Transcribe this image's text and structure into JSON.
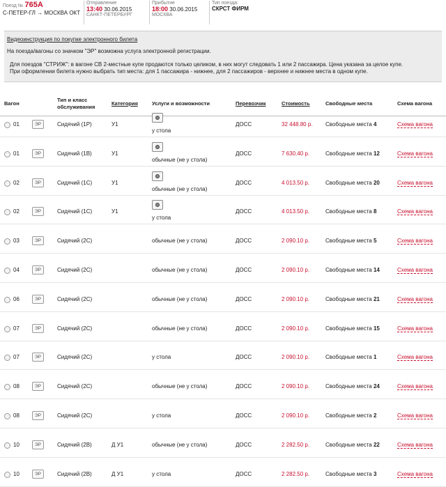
{
  "header": {
    "train_label": "Поезд №",
    "train_number": "765А",
    "route_from": "С-ПЕТЕР-ГЛ",
    "route_arrow": "→",
    "route_to": "МОСКВА ОКТ",
    "departure_label": "Отправление",
    "departure_time": "13:40",
    "departure_date": "30.06.2015",
    "departure_station": "САНКТ-ПЕТЕРБУРГ",
    "arrival_label": "Прибытие",
    "arrival_time": "18:00",
    "arrival_date": "30.06.2015",
    "arrival_station": "МОСКВА",
    "train_type_label": "Тип поезда:",
    "train_type": "СКРСТ ФИРМ"
  },
  "notice": {
    "video_link": "Видеоинструкция по покупке электронного билета",
    "line1": "На поезда/вагоны со значком \"ЭР\" возможна услуга электронной регистрации.",
    "line2": "Для поездов \"СТРИЖ\": в вагоне СВ 2-местные купе продаются только целиком, в них могут следовать 1 или 2 пассажира. Цена указана за целое купе.",
    "line3": "При оформлении билета нужно выбрать тип места: для 1 пассажира - нижнее, для 2 пассажиров - верхнее и нижнее места в одном купе."
  },
  "table": {
    "headers": {
      "car": "Вагон",
      "type_class_1": "Тип и класс",
      "type_class_2": "обслуживания",
      "category": "Категория",
      "services": "Услуги и возможности",
      "carrier": "Перевозчик",
      "price": "Стоимость",
      "free_seats": "Свободные места",
      "scheme": "Схема вагона"
    },
    "er_badge": "ЭР",
    "rows": [
      {
        "car": "01",
        "type": "Сидячий (1Р)",
        "category": "У1",
        "service_icon": true,
        "service": "у стола",
        "carrier": "ДОСС",
        "price": "32 448.80 р.",
        "seats_label": "Свободные места",
        "seats": "4",
        "scheme": "Схема вагона"
      },
      {
        "car": "01",
        "type": "Сидячий (1В)",
        "category": "У1",
        "service_icon": true,
        "service": "обычные (не у стола)",
        "carrier": "ДОСС",
        "price": "7 630.40 р.",
        "seats_label": "Свободные места",
        "seats": "12",
        "scheme": "Схема вагона"
      },
      {
        "car": "02",
        "type": "Сидячий (1С)",
        "category": "У1",
        "service_icon": true,
        "service": "обычные (не у стола)",
        "carrier": "ДОСС",
        "price": "4 013.50 р.",
        "seats_label": "Свободные места",
        "seats": "20",
        "scheme": "Схема вагона"
      },
      {
        "car": "02",
        "type": "Сидячий (1С)",
        "category": "У1",
        "service_icon": true,
        "service": "у стола",
        "carrier": "ДОСС",
        "price": "4 013.50 р.",
        "seats_label": "Свободные места",
        "seats": "8",
        "scheme": "Схема вагона"
      },
      {
        "car": "03",
        "type": "Сидячий (2С)",
        "category": "",
        "service_icon": false,
        "service": "обычные (не у стола)",
        "carrier": "ДОСС",
        "price": "2 090.10 р.",
        "seats_label": "Свободные места",
        "seats": "5",
        "scheme": "Схема вагона"
      },
      {
        "car": "04",
        "type": "Сидячий (2С)",
        "category": "",
        "service_icon": false,
        "service": "обычные (не у стола)",
        "carrier": "ДОСС",
        "price": "2 090.10 р.",
        "seats_label": "Свободные места",
        "seats": "14",
        "scheme": "Схема вагона"
      },
      {
        "car": "06",
        "type": "Сидячий (2С)",
        "category": "",
        "service_icon": false,
        "service": "обычные (не у стола)",
        "carrier": "ДОСС",
        "price": "2 090.10 р.",
        "seats_label": "Свободные места",
        "seats": "21",
        "scheme": "Схема вагона"
      },
      {
        "car": "07",
        "type": "Сидячий (2С)",
        "category": "",
        "service_icon": false,
        "service": "обычные (не у стола)",
        "carrier": "ДОСС",
        "price": "2 090.10 р.",
        "seats_label": "Свободные места",
        "seats": "15",
        "scheme": "Схема вагона"
      },
      {
        "car": "07",
        "type": "Сидячий (2С)",
        "category": "",
        "service_icon": false,
        "service": "у стола",
        "carrier": "ДОСС",
        "price": "2 090.10 р.",
        "seats_label": "Свободные места",
        "seats": "1",
        "scheme": "Схема вагона"
      },
      {
        "car": "08",
        "type": "Сидячий (2С)",
        "category": "",
        "service_icon": false,
        "service": "обычные (не у стола)",
        "carrier": "ДОСС",
        "price": "2 090.10 р.",
        "seats_label": "Свободные места",
        "seats": "24",
        "scheme": "Схема вагона"
      },
      {
        "car": "08",
        "type": "Сидячий (2С)",
        "category": "",
        "service_icon": false,
        "service": "у стола",
        "carrier": "ДОСС",
        "price": "2 090.10 р.",
        "seats_label": "Свободные места",
        "seats": "2",
        "scheme": "Схема вагона"
      },
      {
        "car": "10",
        "type": "Сидячий (2В)",
        "category": "Д У1",
        "service_icon": false,
        "service": "обычные (не у стола)",
        "carrier": "ДОСС",
        "price": "2 282.50 р.",
        "seats_label": "Свободные места",
        "seats": "22",
        "scheme": "Схема вагона"
      },
      {
        "car": "10",
        "type": "Сидячий (2В)",
        "category": "Д У1",
        "service_icon": false,
        "service": "у стола",
        "carrier": "ДОСС",
        "price": "2 282.50 р.",
        "seats_label": "Свободные места",
        "seats": "3",
        "scheme": "Схема вагона"
      }
    ]
  },
  "colors": {
    "accent": "#c8102e",
    "notice_bg": "#ececec"
  }
}
